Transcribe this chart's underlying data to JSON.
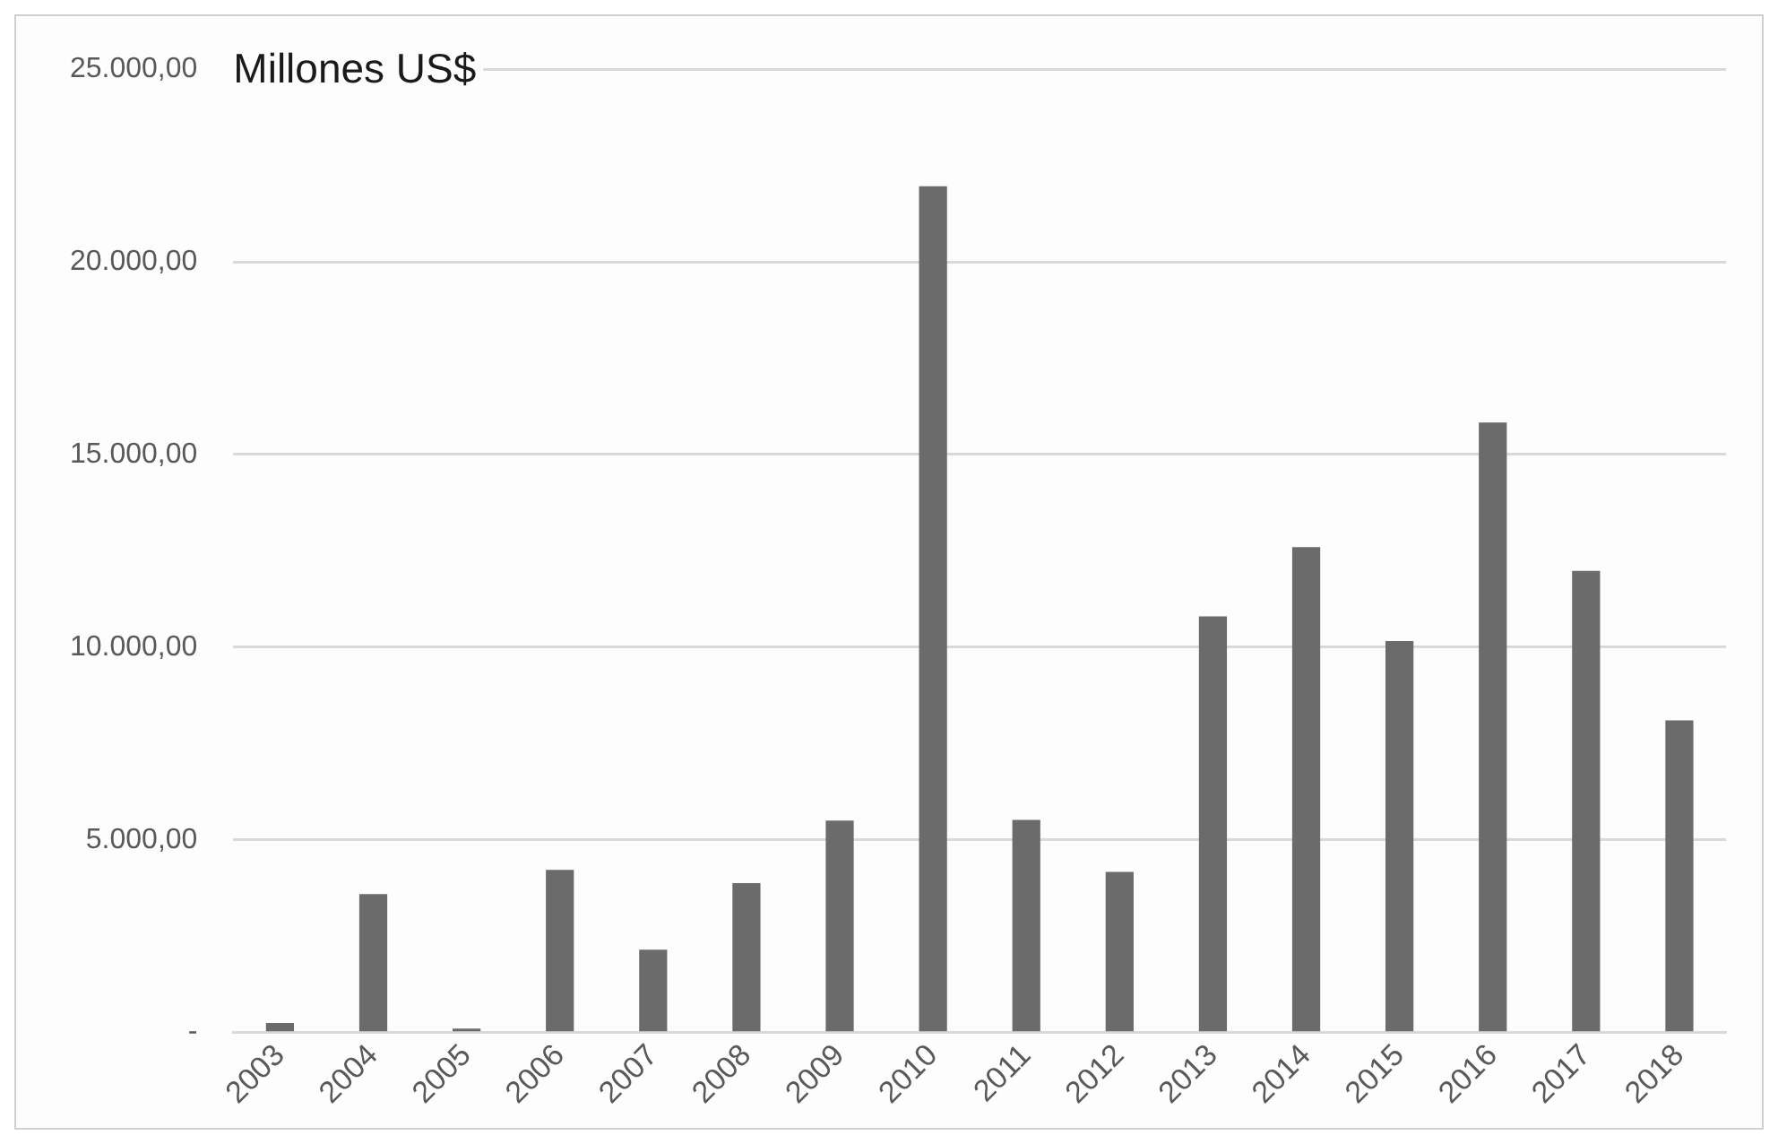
{
  "chart_data": {
    "type": "bar",
    "ylabel": "Millones US$",
    "categories": [
      "2003",
      "2004",
      "2005",
      "2006",
      "2007",
      "2008",
      "2009",
      "2010",
      "2011",
      "2012",
      "2013",
      "2014",
      "2015",
      "2016",
      "2017",
      "2018"
    ],
    "values": [
      250,
      3590,
      100,
      4220,
      2150,
      3880,
      5500,
      21960,
      5520,
      4170,
      10800,
      12600,
      10160,
      15830,
      11980,
      8100
    ],
    "color": "#6b6b6b",
    "ylim": [
      0,
      25000
    ],
    "yticks": [
      {
        "value": 0,
        "label": "-"
      },
      {
        "value": 5000,
        "label": "5.000,00"
      },
      {
        "value": 10000,
        "label": "10.000,00"
      },
      {
        "value": 15000,
        "label": "15.000,00"
      },
      {
        "value": 20000,
        "label": "20.000,00"
      },
      {
        "value": 25000,
        "label": "25.000,00"
      }
    ],
    "grid": "y"
  }
}
